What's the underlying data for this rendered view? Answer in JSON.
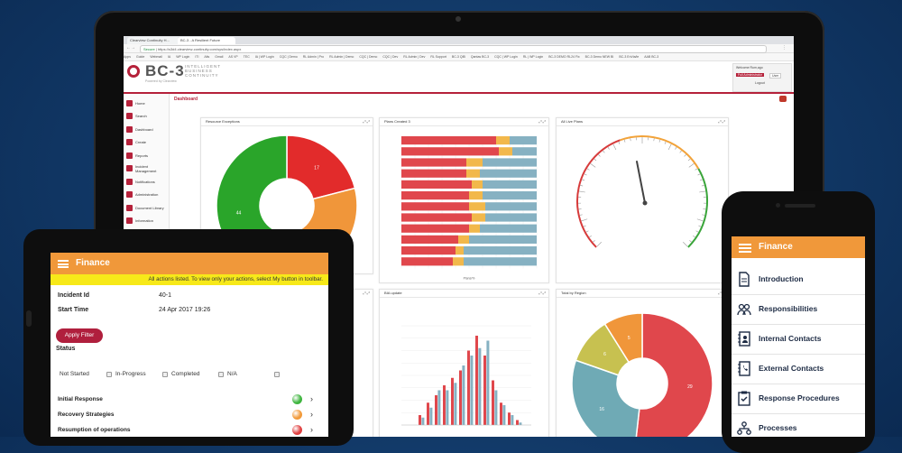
{
  "browser": {
    "tabs": [
      "Clearview Continuity H...",
      "BC-3 - A Resilient Future"
    ],
    "url": "https://s3d4.clearview-continuity.com/sys/index.aspx",
    "secure_label": "Secure",
    "bookmarks": [
      "Apps",
      "Guide",
      "Webmail",
      "IA",
      "WP Login",
      "ITI",
      "Alts",
      "Gmail",
      "AS VP",
      "TEC",
      "IA | WP Login",
      "CQC | Demo",
      "RL Admin | Pro",
      "RL Admin | Demo",
      "CQC | Demo",
      "CQC | Dev",
      "RL Admin | Dev",
      "RL Support",
      "BC-3 QIB",
      "Qantas BC-3",
      "CQC | WP Login",
      "RL | WP Login",
      "BC-3 DEMO RL24 Fix",
      "BC-3 Demo NEW BI",
      "BC-3 EnVia/le",
      "AAB BC-3"
    ]
  },
  "app": {
    "logo": "BC-3",
    "tagline": "INTELLIGENT BUSINESS CONTINUITY",
    "powered": "Powered by Clearview",
    "welcome": "Welcome Rum,ago",
    "role": "Full Administrator",
    "user_btn": "User",
    "logout": "Logout",
    "breadcrumb": "Dashboard",
    "sidebar": [
      "Home",
      "Search",
      "Dashboard",
      "Create",
      "Reports",
      "Incident Management",
      "Notifications",
      "Administration",
      "Document Library",
      "Information"
    ]
  },
  "panels": {
    "resource_exceptions": "Resource Exceptions",
    "plans_created": "Plans Created 3",
    "all_live_plans": "All Live Plans",
    "bia_update": "BIA update",
    "total_by_region": "Total by Region",
    "tool_icons": "⤢ ⤢"
  },
  "chart_data": [
    {
      "type": "pie",
      "title": "Resource Exceptions",
      "donut": true,
      "slices": [
        {
          "value": 17,
          "color": "#e22b2b",
          "label": "17"
        },
        {
          "value": 20,
          "color": "#f0963a",
          "label": ""
        },
        {
          "value": 44,
          "color": "#2aa52a",
          "label": "44"
        }
      ]
    },
    {
      "type": "bar",
      "title": "Plans Created 3",
      "orientation": "horizontal",
      "stacked": true,
      "xlabel": "Plans/%",
      "categories": [
        "",
        "",
        "",
        "",
        "",
        "",
        "",
        "",
        "",
        "",
        "",
        ""
      ],
      "series": [
        {
          "color": "#e0474c",
          "values": [
            70,
            72,
            48,
            48,
            52,
            50,
            50,
            52,
            50,
            42,
            40,
            38
          ]
        },
        {
          "color": "#f2b84b",
          "values": [
            10,
            10,
            12,
            10,
            8,
            10,
            12,
            10,
            8,
            8,
            6,
            8
          ]
        },
        {
          "color": "#86b1c2",
          "values": [
            20,
            18,
            40,
            42,
            40,
            40,
            38,
            38,
            42,
            50,
            54,
            54
          ]
        }
      ],
      "xlim": [
        0,
        100
      ]
    },
    {
      "type": "gauge",
      "title": "All Live Plans",
      "value": 82,
      "min": 0,
      "max": 100
    },
    {
      "type": "bar",
      "title": "BIA update",
      "series": [
        {
          "color": "#e0474c",
          "values": [
            0,
            0,
            4,
            9,
            12,
            16,
            19,
            22,
            30,
            36,
            28,
            18,
            9,
            5,
            2,
            0
          ]
        },
        {
          "color": "#86b1c2",
          "values": [
            0,
            0,
            3,
            7,
            14,
            14,
            17,
            24,
            28,
            31,
            34,
            14,
            8,
            4,
            1,
            0
          ]
        }
      ]
    },
    {
      "type": "pie",
      "title": "Total by Region",
      "donut": true,
      "slices": [
        {
          "value": 29,
          "color": "#e0474c",
          "label": "29"
        },
        {
          "value": 16,
          "color": "#6faab5",
          "label": "16"
        },
        {
          "value": 6,
          "color": "#c7c150",
          "label": "6"
        },
        {
          "value": 5,
          "color": "#f0963a",
          "label": "5"
        }
      ]
    }
  ],
  "tablet": {
    "title": "Finance",
    "banner": "All actions listed. To view only your actions, select My button in toolbar.",
    "incident_id_label": "Incident Id",
    "incident_id_value": "40-1",
    "start_time_label": "Start Time",
    "start_time_value": "24 Apr 2017 19:26",
    "filter_button": "Apply Filter",
    "status_label": "Status",
    "statuses": [
      "Not Started",
      "In-Progress",
      "Completed",
      "N/A"
    ],
    "rows": [
      {
        "label": "Initial Response",
        "status_color": "#3fb53f"
      },
      {
        "label": "Recovery Strategies",
        "status_color": "#f29a3a"
      },
      {
        "label": "Resumption of operations",
        "status_color": "#e04040"
      }
    ]
  },
  "phone": {
    "title": "Finance",
    "items": [
      "Introduction",
      "Responsibilities",
      "Internal Contacts",
      "External Contacts",
      "Response Procedures",
      "Processes"
    ]
  }
}
